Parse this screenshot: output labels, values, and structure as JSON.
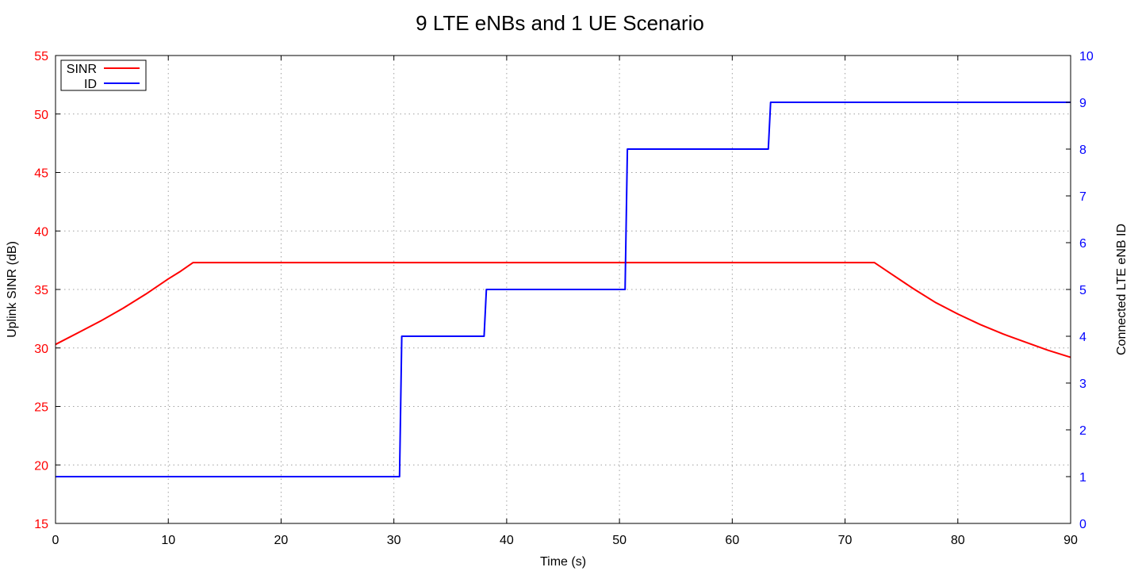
{
  "chart_data": {
    "type": "line",
    "title": "9 LTE eNBs and 1 UE Scenario",
    "xlabel": "Time (s)",
    "ylabel_left": "Uplink SINR (dB)",
    "ylabel_right": "Connected LTE eNB ID",
    "xlim": [
      0,
      90
    ],
    "ylim_left": [
      15,
      55
    ],
    "ylim_right": [
      0,
      10
    ],
    "xticks": [
      "0",
      "10",
      "20",
      "30",
      "40",
      "50",
      "60",
      "70",
      "80",
      "90"
    ],
    "yticks_left": [
      "15",
      "20",
      "25",
      "30",
      "35",
      "40",
      "45",
      "50",
      "55"
    ],
    "yticks_right": [
      "0",
      "1",
      "2",
      "3",
      "4",
      "5",
      "6",
      "7",
      "8",
      "9",
      "10"
    ],
    "grid": true,
    "legend_position": "top-left",
    "series": [
      {
        "name": "SINR",
        "axis": "left",
        "color": "#ff0000",
        "x": [
          0,
          2,
          4,
          6,
          8,
          10,
          11,
          12.2,
          20,
          30,
          40,
          50,
          60,
          72.6,
          74,
          76,
          78,
          80,
          82,
          84,
          86,
          88,
          90
        ],
        "y": [
          30.3,
          31.3,
          32.3,
          33.4,
          34.6,
          35.9,
          36.5,
          37.3,
          37.3,
          37.3,
          37.3,
          37.3,
          37.3,
          37.3,
          36.4,
          35.1,
          33.9,
          32.9,
          32.0,
          31.2,
          30.5,
          29.8,
          29.2
        ]
      },
      {
        "name": "ID",
        "axis": "right",
        "color": "#0000ff",
        "x": [
          0,
          30.5,
          30.7,
          38.0,
          38.2,
          50.5,
          50.7,
          63.2,
          63.4,
          90
        ],
        "y": [
          1,
          1,
          4,
          4,
          5,
          5,
          8,
          8,
          9,
          9
        ]
      }
    ]
  }
}
